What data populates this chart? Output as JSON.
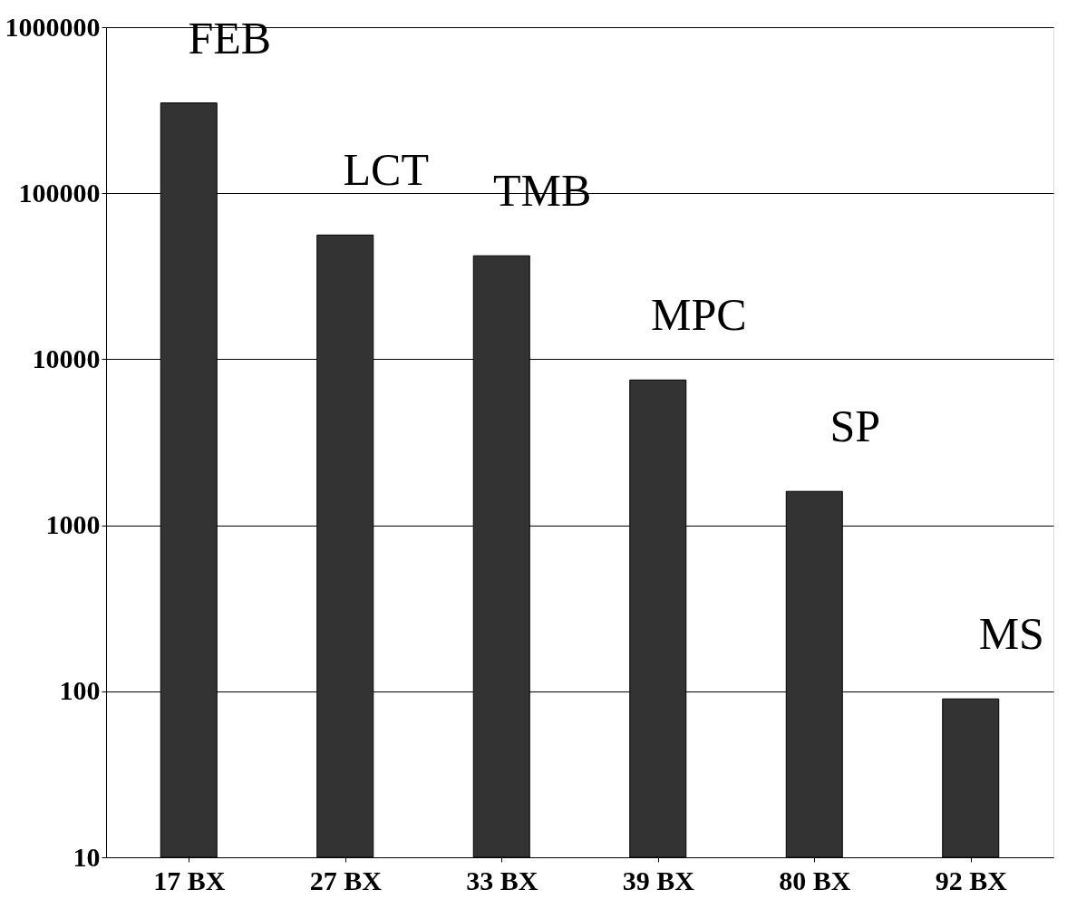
{
  "chart_data": {
    "type": "bar",
    "categories": [
      "17 BX",
      "27 BX",
      "33 BX",
      "39 BX",
      "80 BX",
      "92 BX"
    ],
    "values": [
      350000,
      56000,
      42000,
      7500,
      1600,
      90
    ],
    "color": "#333333",
    "log": true,
    "ylim": [
      10,
      1000000
    ],
    "yticks": [
      10,
      100,
      1000,
      10000,
      100000,
      1000000
    ],
    "grid": "y",
    "annotations": [
      "FEB",
      "LCT",
      "TMB",
      "MPC",
      "SP",
      "MS"
    ]
  }
}
